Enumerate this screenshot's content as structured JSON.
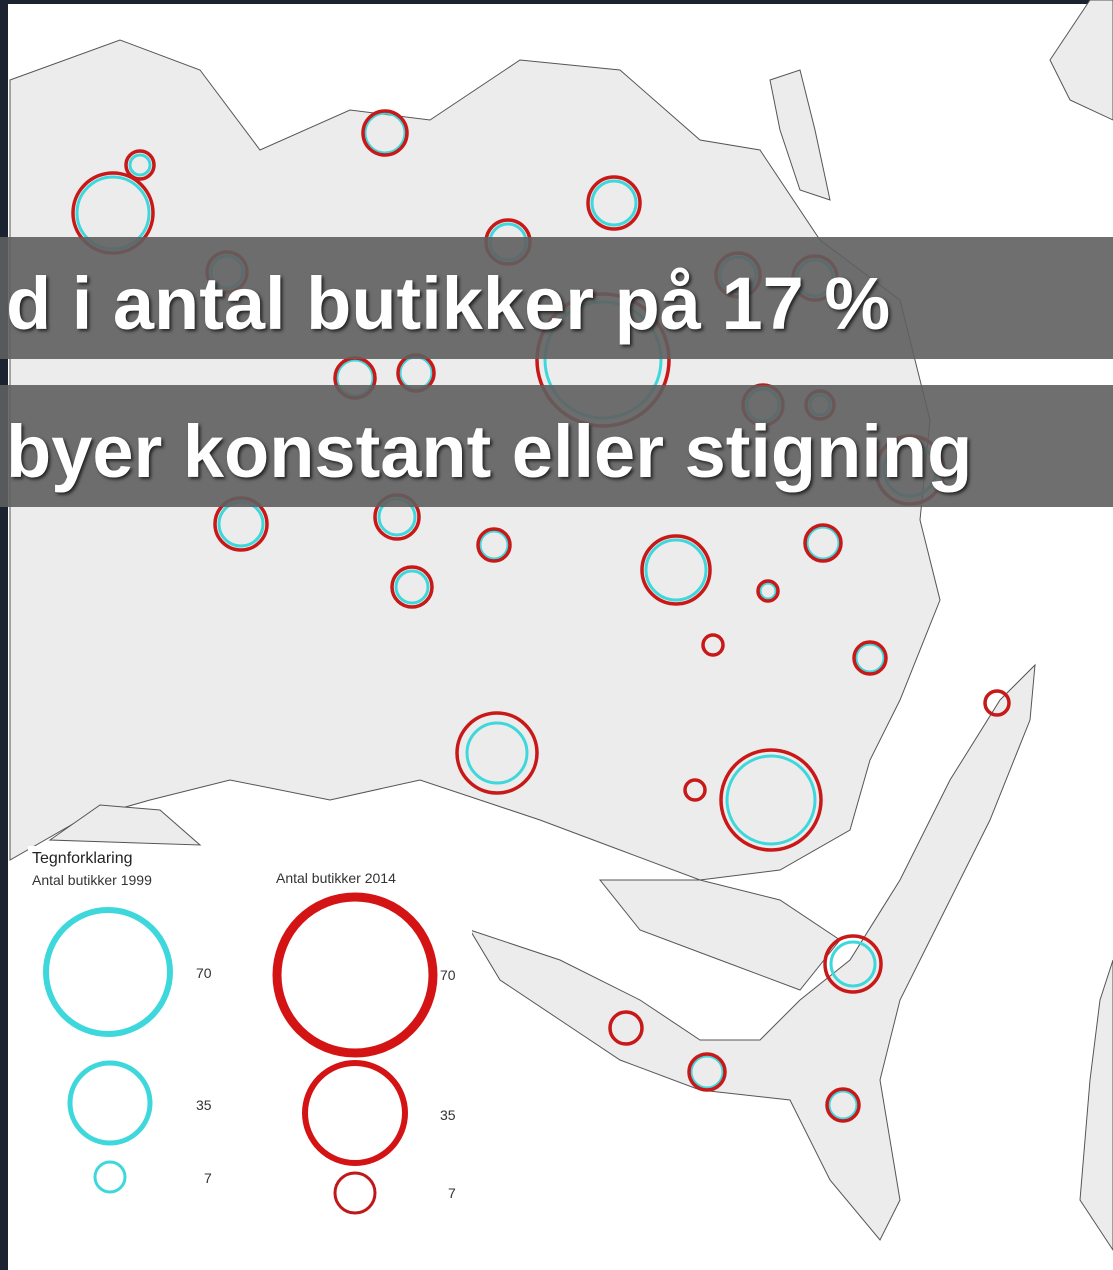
{
  "banners": [
    "d i antal butikker på 17 %",
    "byer konstant eller stigning"
  ],
  "legend": {
    "title": "Tegnforklaring",
    "groups": [
      {
        "title": "Antal butikker 1999",
        "labels": [
          70,
          35,
          7
        ]
      },
      {
        "title": "Antal butikker 2014",
        "labels": [
          70,
          35,
          7
        ]
      }
    ]
  }
}
